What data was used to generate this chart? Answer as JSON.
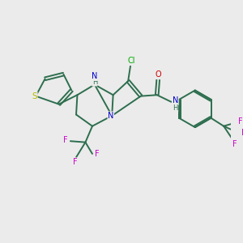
{
  "background_color": "#ebebeb",
  "bond_color": "#2d6e4e",
  "atom_colors": {
    "S": "#b8b800",
    "N": "#0000cc",
    "O": "#cc0000",
    "Cl": "#00aa00",
    "F": "#cc00cc",
    "H_label": "#2d6e4e",
    "C": "#2d6e4e"
  },
  "font_size": 7.0
}
